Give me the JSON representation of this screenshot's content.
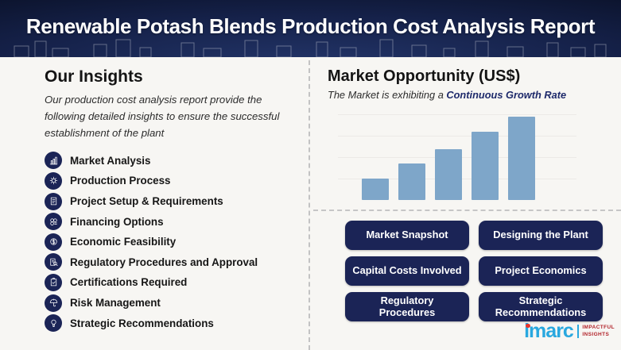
{
  "header": {
    "title": "Renewable Potash Blends Production Cost Analysis Report"
  },
  "insights": {
    "title": "Our Insights",
    "subtitle": "Our production cost analysis report provide the following detailed insights to ensure the successful establishment of the plant",
    "items": [
      {
        "icon": "market-analysis-icon",
        "label": "Market Analysis"
      },
      {
        "icon": "production-process-icon",
        "label": "Production Process"
      },
      {
        "icon": "project-setup-icon",
        "label": "Project Setup & Requirements"
      },
      {
        "icon": "financing-options-icon",
        "label": "Financing Options"
      },
      {
        "icon": "economic-feasibility-icon",
        "label": "Economic Feasibility"
      },
      {
        "icon": "regulatory-procedures-icon",
        "label": "Regulatory Procedures and Approval"
      },
      {
        "icon": "certifications-required-icon",
        "label": "Certifications Required"
      },
      {
        "icon": "risk-management-icon",
        "label": "Risk Management"
      },
      {
        "icon": "strategic-recommendations-icon",
        "label": "Strategic Recommendations"
      }
    ]
  },
  "market": {
    "title": "Market Opportunity (US$)",
    "subtitle_prefix": "The Market is exhibiting a ",
    "subtitle_highlight": "Continuous Growth Rate",
    "buttons": [
      "Market Snapshot",
      "Designing the Plant",
      "Capital Costs Involved",
      "Project Economics",
      "Regulatory Procedures",
      "Strategic Recommendations"
    ]
  },
  "chart_data": {
    "type": "bar",
    "values": [
      26,
      45,
      63,
      84,
      103
    ],
    "categories": [
      "",
      "",
      "",
      "",
      ""
    ],
    "title": "",
    "xlabel": "",
    "ylabel": "",
    "bar_color": "#7ea6c9",
    "gridlines": true,
    "legend": false
  },
  "logo": {
    "brand": "imarc",
    "tagline_line1": "IMPACTFUL",
    "tagline_line2": "INSIGHTS"
  },
  "colors": {
    "header_navy": "#0a1128",
    "accent_navy": "#1b2456",
    "bar_blue": "#7ea6c9",
    "highlight_navy": "#1e2a6b",
    "logo_blue": "#29a8df",
    "logo_red": "#e8342c",
    "tagline_red": "#b2232a"
  }
}
